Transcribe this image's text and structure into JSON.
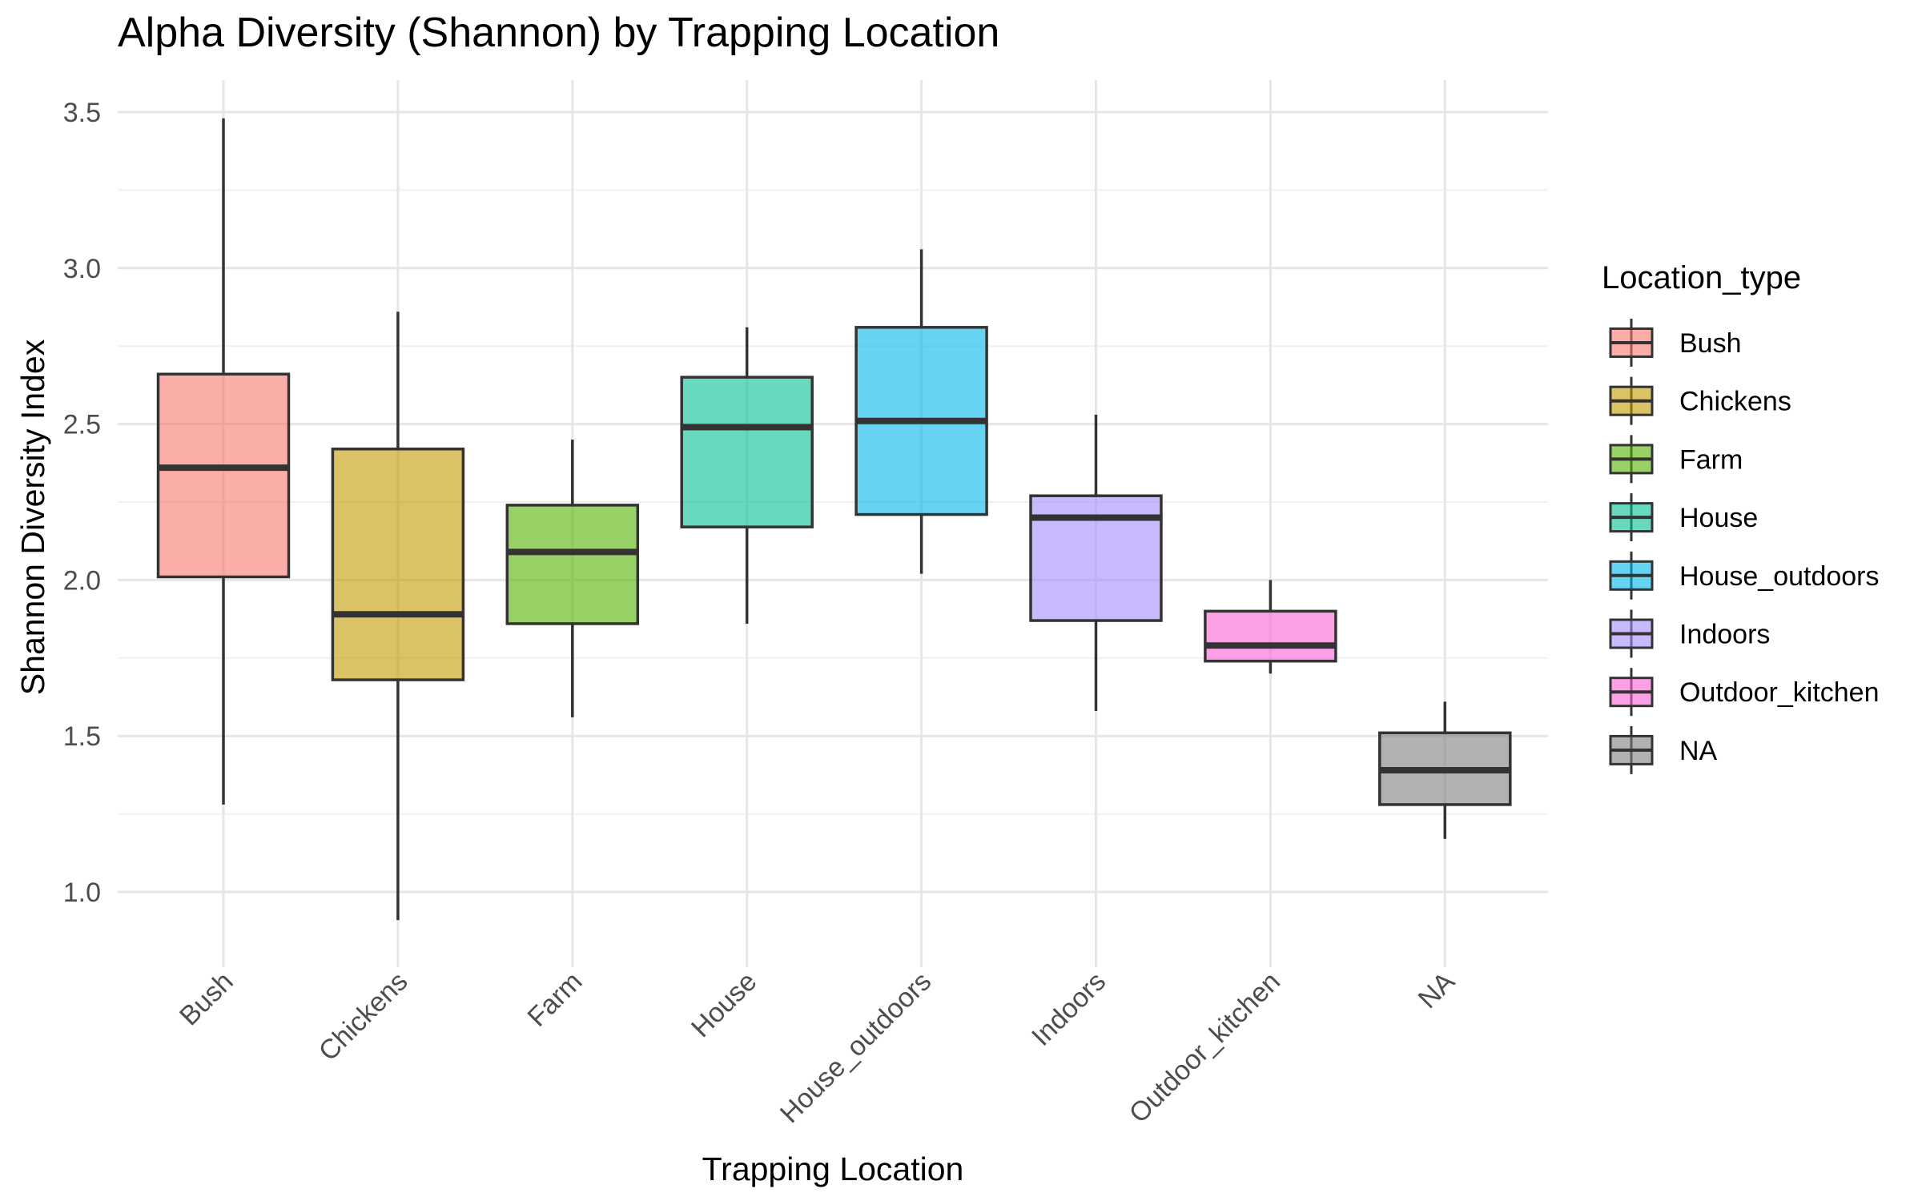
{
  "chart_data": {
    "type": "box",
    "title": "Alpha Diversity (Shannon) by Trapping Location",
    "xlabel": "Trapping Location",
    "ylabel": "Shannon Diversity Index",
    "ylim": [
      0.78,
      3.6
    ],
    "yticks": [
      1.0,
      1.5,
      2.0,
      2.5,
      3.0,
      3.5
    ],
    "ytick_labels": [
      "1.0",
      "1.5",
      "2.0",
      "2.5",
      "3.0",
      "3.5"
    ],
    "grid": true,
    "legend_position": "right",
    "legend_title": "Location_type",
    "categories": [
      "Bush",
      "Chickens",
      "Farm",
      "House",
      "House_outdoors",
      "Indoors",
      "Outdoor_kitchen",
      "NA"
    ],
    "boxes": [
      {
        "name": "Bush",
        "min": 1.28,
        "q1": 2.01,
        "median": 2.36,
        "q3": 2.66,
        "max": 3.48,
        "color": "#F8766D"
      },
      {
        "name": "Chickens",
        "min": 0.91,
        "q1": 1.68,
        "median": 1.89,
        "q3": 2.42,
        "max": 2.86,
        "color": "#C49A00"
      },
      {
        "name": "Farm",
        "min": 1.56,
        "q1": 1.86,
        "median": 2.09,
        "q3": 2.24,
        "max": 2.45,
        "color": "#53B400"
      },
      {
        "name": "House",
        "min": 1.86,
        "q1": 2.17,
        "median": 2.49,
        "q3": 2.65,
        "max": 2.81,
        "color": "#00C094"
      },
      {
        "name": "House_outdoors",
        "min": 2.02,
        "q1": 2.21,
        "median": 2.51,
        "q3": 2.81,
        "max": 3.06,
        "color": "#00B6EB"
      },
      {
        "name": "Indoors",
        "min": 1.58,
        "q1": 1.87,
        "median": 2.2,
        "q3": 2.27,
        "max": 2.53,
        "color": "#A58AFF"
      },
      {
        "name": "Outdoor_kitchen",
        "min": 1.7,
        "q1": 1.74,
        "median": 1.79,
        "q3": 1.9,
        "max": 2.0,
        "color": "#FB61D7"
      },
      {
        "name": "NA",
        "min": 1.17,
        "q1": 1.28,
        "median": 1.39,
        "q3": 1.51,
        "max": 1.61,
        "color": "#7F7F7F"
      }
    ]
  }
}
